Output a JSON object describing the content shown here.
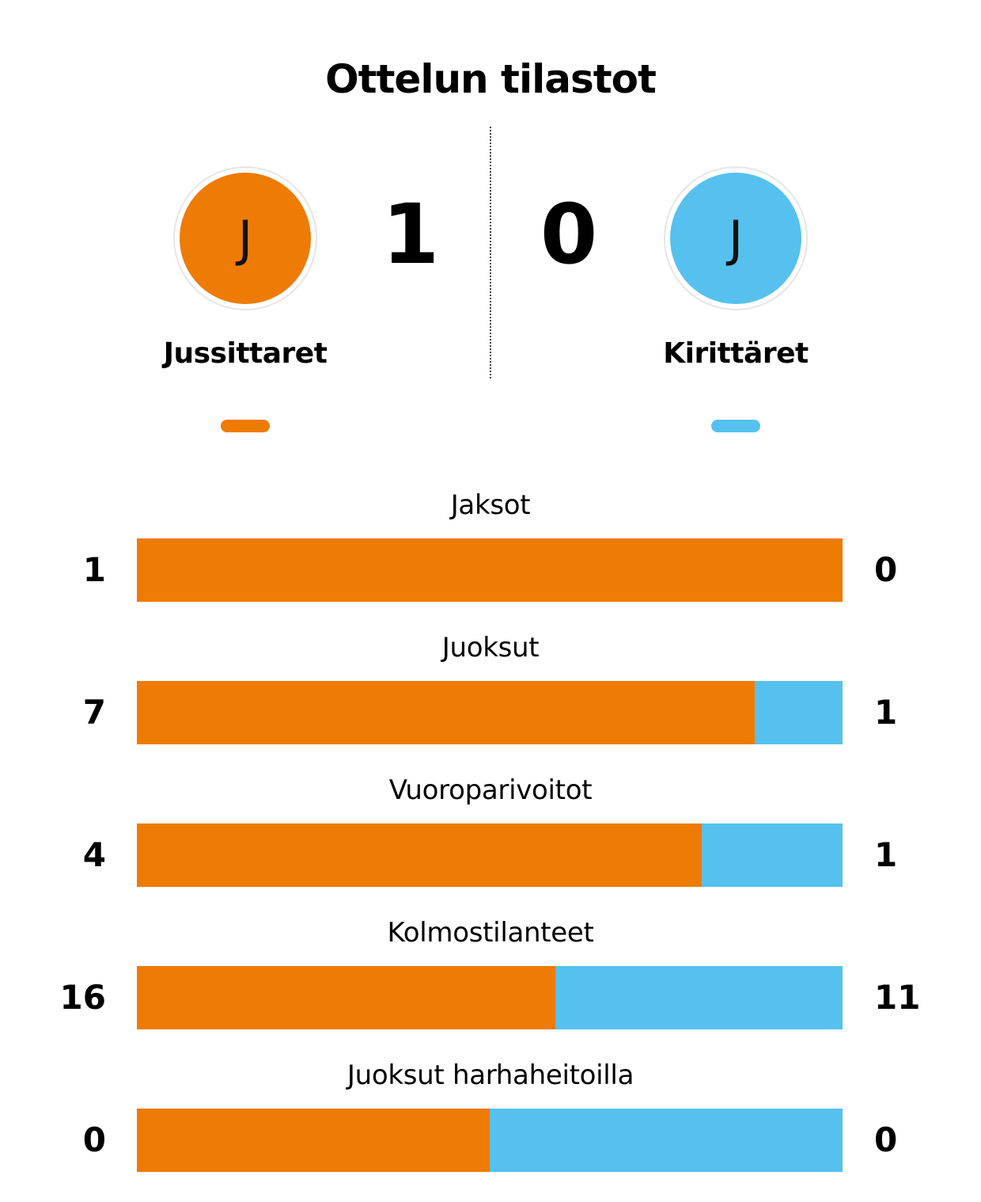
{
  "title": "Ottelun tilastot",
  "colors": {
    "home": "#EE7B04",
    "away": "#56C1EE"
  },
  "home": {
    "name": "Jussittaret",
    "logo_letter": "J",
    "score": "1"
  },
  "away": {
    "name": "Kirittäret",
    "logo_letter": "J",
    "score": "0"
  },
  "stats": [
    {
      "label": "Jaksot",
      "home": "1",
      "away": "0",
      "home_share": 1.0
    },
    {
      "label": "Juoksut",
      "home": "7",
      "away": "1",
      "home_share": 0.875
    },
    {
      "label": "Vuoroparivoitot",
      "home": "4",
      "away": "1",
      "home_share": 0.8
    },
    {
      "label": "Kolmostilanteet",
      "home": "16",
      "away": "11",
      "home_share": 0.5926
    },
    {
      "label": "Juoksut harhaheitoilla",
      "home": "0",
      "away": "0",
      "home_share": 0.5
    }
  ]
}
